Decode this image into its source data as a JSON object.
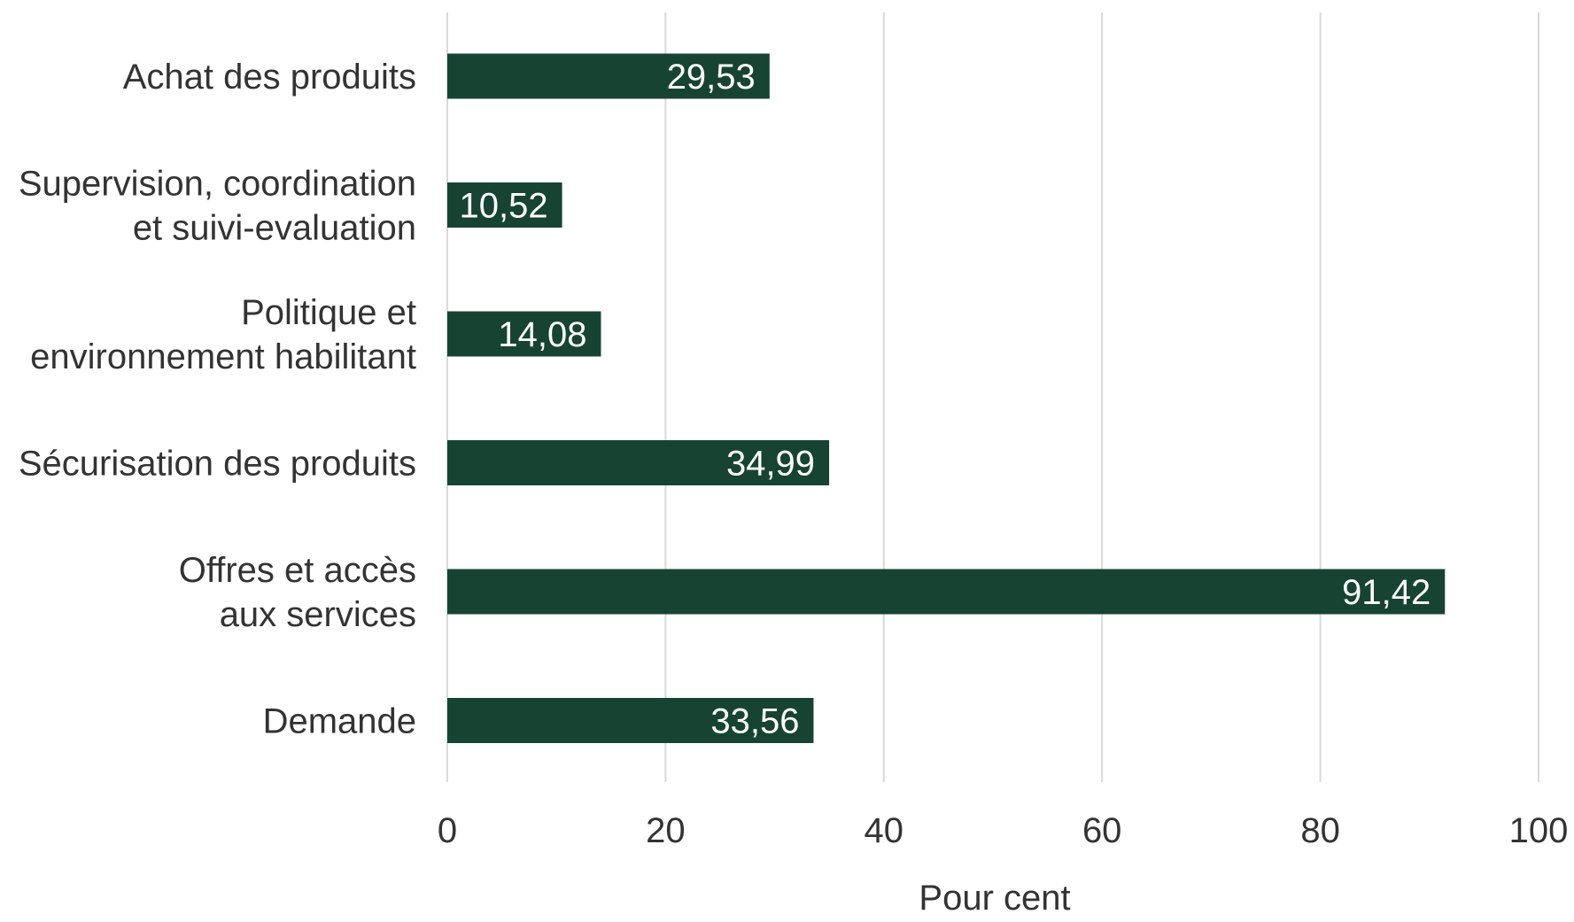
{
  "chart_data": {
    "type": "bar",
    "orientation": "horizontal",
    "categories": [
      [
        "Achat des produits"
      ],
      [
        "Supervision, coordination",
        "et suivi-evaluation"
      ],
      [
        "Politique et",
        "environnement habilitant"
      ],
      [
        "Sécurisation des produits"
      ],
      [
        "Offres et accès",
        "aux services"
      ],
      [
        "Demande"
      ]
    ],
    "values": [
      29.53,
      10.52,
      14.08,
      34.99,
      91.42,
      33.56
    ],
    "data_labels": [
      "29,53",
      "10,52",
      "14,08",
      "34,99",
      "91,42",
      "33,56"
    ],
    "xlabel": "Pour cent",
    "ylabel": "",
    "xlim": [
      0,
      100
    ],
    "xticks": [
      0,
      20,
      40,
      60,
      80,
      100
    ],
    "xtick_labels": [
      "0",
      "20",
      "40",
      "60",
      "80",
      "100"
    ],
    "grid": true,
    "legend": "none",
    "colors": {
      "bar": "#174432",
      "grid": "#d9d9d9",
      "text": "#333333",
      "data_label": "#ffffff"
    }
  }
}
